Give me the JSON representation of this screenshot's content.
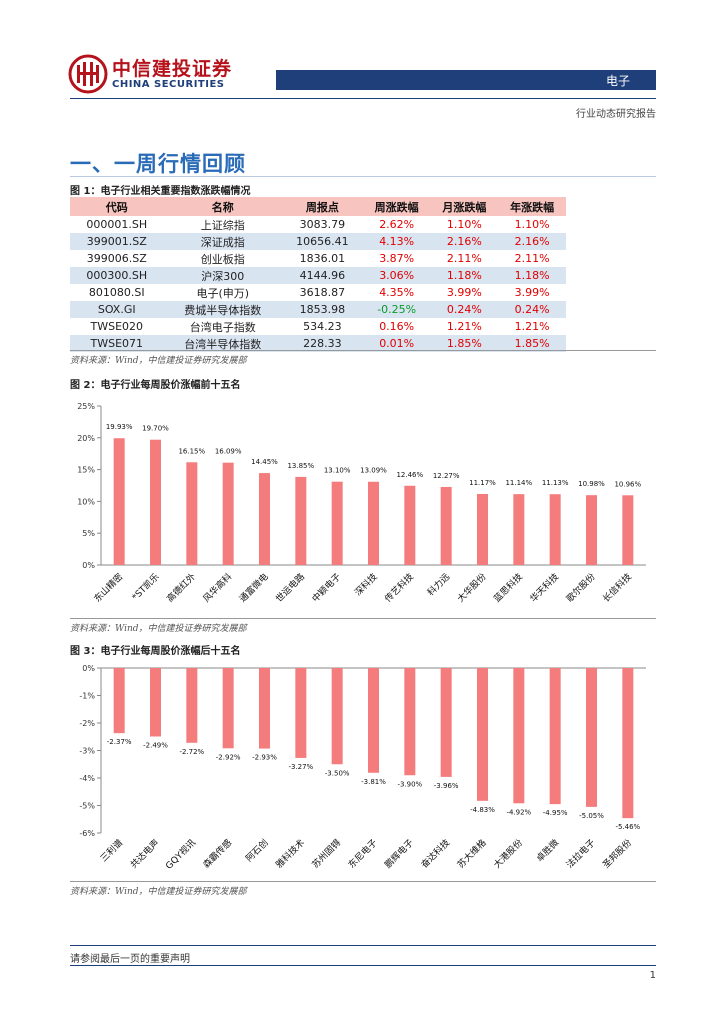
{
  "header": {
    "logo_cn": "中信建投证券",
    "logo_en": "CHINA SECURITIES",
    "sector": "电子",
    "report_type": "行业动态研究报告"
  },
  "section_title": "一、一周行情回顾",
  "colors": {
    "brand_red": "#b5121b",
    "brand_navy": "#1f3f7a",
    "bar": "#f47c7c",
    "up": "#e00000",
    "down": "#0a9a2a"
  },
  "fig1": {
    "title": "图 1：电子行业相关重要指数涨跌幅情况",
    "headers": [
      "代码",
      "名称",
      "周报点",
      "周涨跌幅",
      "月涨跌幅",
      "年涨跌幅"
    ],
    "rows": [
      [
        "000001.SH",
        "上证综指",
        "3083.79",
        "2.62%",
        "1.10%",
        "1.10%"
      ],
      [
        "399001.SZ",
        "深证成指",
        "10656.41",
        "4.13%",
        "2.16%",
        "2.16%"
      ],
      [
        "399006.SZ",
        "创业板指",
        "1836.01",
        "3.87%",
        "2.11%",
        "2.11%"
      ],
      [
        "000300.SH",
        "沪深300",
        "4144.96",
        "3.06%",
        "1.18%",
        "1.18%"
      ],
      [
        "801080.SI",
        "电子(申万)",
        "3618.87",
        "4.35%",
        "3.99%",
        "3.99%"
      ],
      [
        "SOX.GI",
        "费城半导体指数",
        "1853.98",
        "-0.25%",
        "0.24%",
        "0.24%"
      ],
      [
        "TWSE020",
        "台湾电子指数",
        "534.23",
        "0.16%",
        "1.21%",
        "1.21%"
      ],
      [
        "TWSE071",
        "台湾半导体指数",
        "228.33",
        "0.01%",
        "1.85%",
        "1.85%"
      ]
    ],
    "source": "资料来源：Wind，中信建投证券研究发展部"
  },
  "fig2": {
    "title": "图 2：电子行业每周股价涨幅前十五名",
    "source": "资料来源：Wind，中信建投证券研究发展部"
  },
  "fig3": {
    "title": "图 3：电子行业每周股价涨幅后十五名",
    "source": "资料来源：Wind，中信建投证券研究发展部"
  },
  "chart_data": [
    {
      "type": "bar",
      "categories": [
        "东山精密",
        "*ST凯乐",
        "高德红外",
        "风华高科",
        "通富微电",
        "世运电路",
        "中颖电子",
        "深科技",
        "传艺科技",
        "科力远",
        "大华股份",
        "蓝思科技",
        "华天科技",
        "歌尔股份",
        "长信科技"
      ],
      "values": [
        19.93,
        19.7,
        16.15,
        16.09,
        14.45,
        13.85,
        13.1,
        13.09,
        12.46,
        12.27,
        11.17,
        11.14,
        11.13,
        10.98,
        10.96
      ],
      "labels": [
        "19.93%",
        "19.70%",
        "16.15%",
        "16.09%",
        "14.45%",
        "13.85%",
        "13.10%",
        "13.09%",
        "12.46%",
        "12.27%",
        "11.17%",
        "11.14%",
        "11.13%",
        "10.98%",
        "10.96%"
      ],
      "yticks": [
        "0%",
        "5%",
        "10%",
        "15%",
        "20%",
        "25%"
      ],
      "ylim": [
        0,
        25
      ],
      "grid": false
    },
    {
      "type": "bar",
      "categories": [
        "三利谱",
        "共达电声",
        "GQY视讯",
        "森霸传感",
        "阿石创",
        "雅科技术",
        "苏州固锝",
        "东尼电子",
        "鹏辉电子",
        "奋达科技",
        "苏大维格",
        "大港股份",
        "卓胜微",
        "法拉电子",
        "圣邦股份"
      ],
      "values": [
        -2.37,
        -2.49,
        -2.72,
        -2.92,
        -2.93,
        -3.27,
        -3.5,
        -3.81,
        -3.9,
        -3.96,
        -4.83,
        -4.92,
        -4.95,
        -5.05,
        -5.46
      ],
      "labels": [
        "-2.37%",
        "-2.49%",
        "-2.72%",
        "-2.92%",
        "-2.93%",
        "-3.27%",
        "-3.50%",
        "-3.81%",
        "-3.90%",
        "-3.96%",
        "-4.83%",
        "-4.92%",
        "-4.95%",
        "-5.05%",
        "-5.46%"
      ],
      "yticks": [
        "0%",
        "-1%",
        "-2%",
        "-3%",
        "-4%",
        "-5%",
        "-6%"
      ],
      "ylim": [
        -6,
        0
      ],
      "grid": false
    }
  ],
  "footer": {
    "note": "请参阅最后一页的重要声明",
    "page": "1"
  }
}
